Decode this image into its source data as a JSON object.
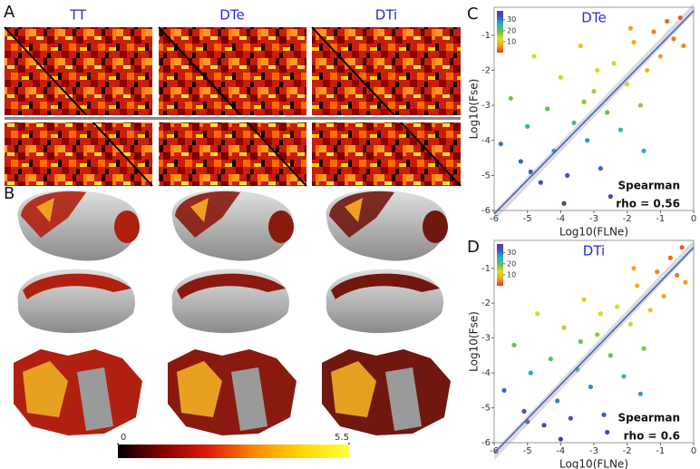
{
  "panel_a": {
    "label": "A",
    "titles": [
      "TT",
      "DTe",
      "DTi"
    ]
  },
  "panel_b": {
    "label": "B",
    "colorbar": {
      "clim": [
        0,
        5.5
      ],
      "ticks": [
        0,
        5.5
      ],
      "colors": [
        "#000000",
        "#8b0000",
        "#e0200a",
        "#ff8c00",
        "#ffd700",
        "#ffff40"
      ]
    }
  },
  "chart_data": [
    {
      "type": "scatter",
      "panel": "C",
      "title": "DTe",
      "x_label": "Log10(FLNe)",
      "y_label": "Log10(Fse)",
      "xlim": [
        -6,
        0
      ],
      "ylim": [
        -6,
        -0.2
      ],
      "xticks": [
        -6,
        -5,
        -4,
        -3,
        -2,
        -1,
        0
      ],
      "yticks": [
        -6,
        -5,
        -4,
        -3,
        -2,
        -1
      ],
      "x": [
        -5.8,
        -5.5,
        -5.2,
        -5,
        -4.8,
        -4.6,
        -4.4,
        -4.2,
        -4,
        -3.8,
        -3.6,
        -3.4,
        -3.2,
        -3,
        -2.8,
        -2.6,
        -2.4,
        -2.2,
        -2,
        -1.8,
        -1.6,
        -1.4,
        -1.2,
        -1,
        -0.8,
        -0.6,
        -0.4,
        -0.3,
        -2.5,
        -3.9,
        -1.5,
        -4.9,
        -2.9,
        -1.9,
        -3.3
      ],
      "y": [
        -4.1,
        -2.8,
        -4.6,
        -3.6,
        -1.6,
        -5.2,
        -3.1,
        -4.3,
        -2.2,
        -5,
        -3.5,
        -1.3,
        -4,
        -2.6,
        -4.8,
        -3.2,
        -1.8,
        -3.7,
        -2.4,
        -1.2,
        -3,
        -2,
        -0.9,
        -1.6,
        -0.6,
        -1.1,
        -0.5,
        -1.3,
        -5.6,
        -5.8,
        -4.3,
        -4.9,
        -2,
        -0.8,
        -2.9
      ],
      "c": [
        30,
        18,
        32,
        25,
        12,
        34,
        20,
        28,
        14,
        33,
        22,
        10,
        27,
        16,
        31,
        19,
        11,
        24,
        13,
        7,
        17,
        9,
        4,
        6,
        3,
        4,
        2,
        5,
        35,
        36,
        26,
        33,
        12,
        6,
        18
      ],
      "colorbar": {
        "clim": [
          0,
          38
        ],
        "ticks": [
          10,
          20,
          30
        ],
        "colors": [
          "#e8322a",
          "#f7a21b",
          "#d9e021",
          "#6cc24a",
          "#2bb3c0",
          "#3a5fc8",
          "#6a2c91"
        ]
      },
      "fit": {
        "x": [
          -6,
          0
        ],
        "y": [
          -6.1,
          -0.3
        ]
      },
      "annotations": [
        "Spearman",
        "rho =  0.56"
      ]
    },
    {
      "type": "scatter",
      "panel": "D",
      "title": "DTi",
      "x_label": "Log10(FLNe)",
      "y_label": "Log10(Fse)",
      "xlim": [
        -6,
        0
      ],
      "ylim": [
        -6,
        -0.2
      ],
      "xticks": [
        -6,
        -5,
        -4,
        -3,
        -2,
        -1,
        0
      ],
      "yticks": [
        -6,
        -5,
        -4,
        -3,
        -2,
        -1
      ],
      "x": [
        -5.7,
        -5.4,
        -5.1,
        -4.9,
        -4.7,
        -4.5,
        -4.3,
        -4.1,
        -3.9,
        -3.7,
        -3.5,
        -3.3,
        -3.1,
        -2.9,
        -2.7,
        -2.5,
        -2.3,
        -2.1,
        -1.9,
        -1.7,
        -1.5,
        -1.3,
        -1.1,
        -0.9,
        -0.7,
        -0.5,
        -0.35,
        -0.25,
        -2.6,
        -4,
        -1.6,
        -5,
        -2.8,
        -1.8,
        -3.4
      ],
      "y": [
        -4.5,
        -3.2,
        -5.1,
        -4,
        -2.3,
        -5.5,
        -3.6,
        -4.8,
        -2.7,
        -5.3,
        -3.9,
        -1.9,
        -4.4,
        -2.9,
        -5.2,
        -3.5,
        -2.1,
        -4.1,
        -2.6,
        -1.5,
        -3.3,
        -2.2,
        -1.1,
        -1.8,
        -0.7,
        -1.2,
        -0.4,
        -1.4,
        -5.7,
        -5.9,
        -4.6,
        -5.4,
        -2.3,
        -1,
        -3.1
      ],
      "c": [
        31,
        19,
        33,
        26,
        13,
        35,
        21,
        29,
        15,
        34,
        23,
        11,
        28,
        17,
        32,
        20,
        12,
        25,
        14,
        8,
        18,
        10,
        5,
        7,
        3,
        4,
        2,
        6,
        36,
        37,
        27,
        34,
        13,
        7,
        19
      ],
      "colorbar": {
        "clim": [
          0,
          38
        ],
        "ticks": [
          10,
          20,
          30
        ],
        "colors": [
          "#e8322a",
          "#f7a21b",
          "#d9e021",
          "#6cc24a",
          "#2bb3c0",
          "#3a5fc8",
          "#6a2c91"
        ]
      },
      "fit": {
        "x": [
          -6,
          0
        ],
        "y": [
          -6.3,
          -0.4
        ]
      },
      "annotations": [
        "Spearman",
        "rho =  0.6"
      ]
    }
  ]
}
